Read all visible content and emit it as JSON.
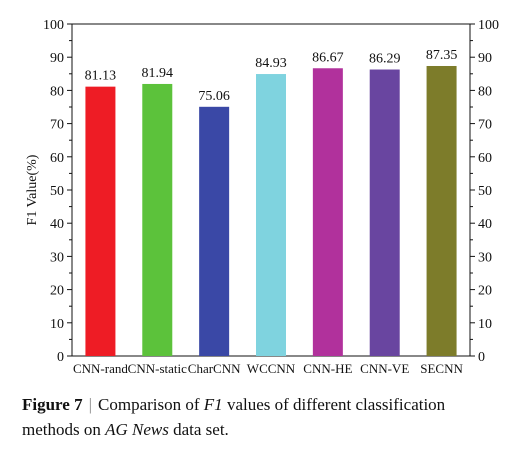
{
  "chart_data": {
    "type": "bar",
    "categories": [
      "CNN-rand",
      "CNN-static",
      "CharCNN",
      "WCCNN",
      "CNN-HE",
      "CNN-VE",
      "SECNN"
    ],
    "values": [
      81.13,
      81.94,
      75.06,
      84.93,
      86.67,
      86.29,
      87.35
    ],
    "value_labels": [
      "81.13",
      "81.94",
      "75.06",
      "84.93",
      "86.67",
      "86.29",
      "87.35"
    ],
    "colors": [
      "#ee1c25",
      "#5cc23b",
      "#3a48a6",
      "#7fd3df",
      "#b1319c",
      "#6945a0",
      "#7d7c2a"
    ],
    "ylabel": "F1 Value(%)",
    "ylim": [
      0,
      100
    ],
    "yticks": [
      0,
      10,
      20,
      30,
      40,
      50,
      60,
      70,
      80,
      90,
      100
    ],
    "right_axis": true,
    "grid": false
  },
  "caption": {
    "label": "Figure 7",
    "sep": "|",
    "text_a": "Comparison of ",
    "text_italic_1": "F1",
    "text_b": " values of different classification methods on ",
    "text_italic_2": "AG News",
    "text_c": " data set."
  }
}
